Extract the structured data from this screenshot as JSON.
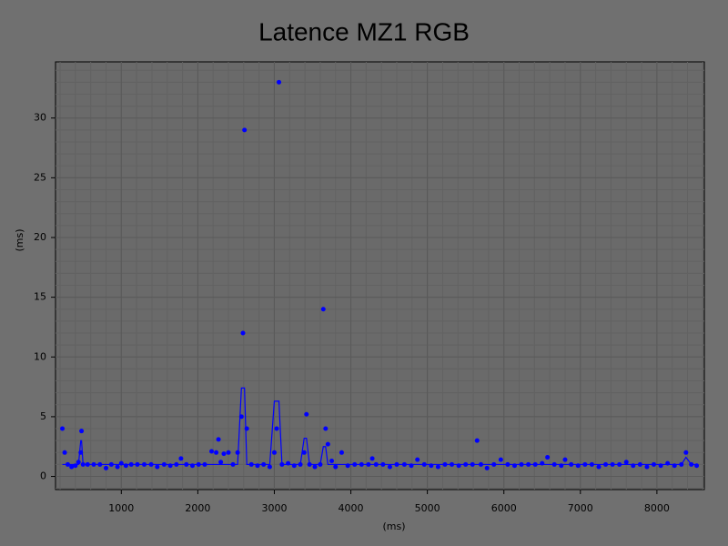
{
  "chart_data": {
    "type": "scatter",
    "title": "Latence MZ1 RGB",
    "x_label": "(ms)",
    "y_label": "(ms)",
    "x": [
      230,
      260,
      300,
      350,
      400,
      440,
      470,
      480,
      500,
      560,
      640,
      720,
      800,
      870,
      950,
      1000,
      1060,
      1130,
      1210,
      1300,
      1390,
      1470,
      1560,
      1640,
      1720,
      1780,
      1850,
      1930,
      2010,
      2090,
      2180,
      2240,
      2270,
      2300,
      2340,
      2400,
      2460,
      2520,
      2570,
      2590,
      2610,
      2640,
      2700,
      2780,
      2860,
      2940,
      3000,
      3030,
      3060,
      3100,
      3180,
      3260,
      3340,
      3390,
      3420,
      3460,
      3530,
      3600,
      3640,
      3670,
      3700,
      3750,
      3800,
      3880,
      3960,
      4050,
      4140,
      4230,
      4280,
      4330,
      4420,
      4510,
      4600,
      4700,
      4790,
      4870,
      4960,
      5050,
      5140,
      5230,
      5320,
      5410,
      5500,
      5590,
      5650,
      5700,
      5780,
      5870,
      5960,
      6050,
      6140,
      6230,
      6320,
      6410,
      6500,
      6570,
      6660,
      6750,
      6800,
      6880,
      6970,
      7060,
      7150,
      7240,
      7330,
      7420,
      7510,
      7600,
      7690,
      7780,
      7870,
      7960,
      8050,
      8140,
      8230,
      8320,
      8380,
      8450,
      8520
    ],
    "series": [
      {
        "color": "#0000ff",
        "marker": true,
        "values": [
          4,
          2,
          1,
          0.8,
          0.9,
          1.2,
          2,
          3.8,
          1,
          1,
          1,
          1,
          0.7,
          1,
          0.8,
          1.1,
          0.9,
          1,
          1,
          1,
          1,
          0.8,
          1,
          0.9,
          1,
          1.5,
          1,
          0.9,
          1,
          1,
          2.1,
          2,
          3.1,
          1.2,
          1.9,
          2,
          1,
          2,
          5,
          12,
          29,
          4,
          1,
          0.9,
          1,
          0.8,
          2,
          4,
          33,
          1,
          1.1,
          0.9,
          1,
          2,
          5.2,
          1,
          0.8,
          1,
          14,
          4,
          2.7,
          1.3,
          0.8,
          2,
          0.9,
          1,
          1,
          1,
          1.5,
          1,
          1,
          0.8,
          1,
          1,
          0.9,
          1.4,
          1,
          0.9,
          0.8,
          1,
          1,
          0.9,
          1,
          1,
          3,
          1,
          0.7,
          1,
          1.4,
          1,
          0.9,
          1,
          1,
          1,
          1.1,
          1.6,
          1,
          0.9,
          1.4,
          1,
          0.9,
          1,
          1,
          0.8,
          1,
          1,
          1,
          1.2,
          0.9,
          1,
          0.8,
          1,
          0.9,
          1.1,
          0.9,
          1,
          2,
          1,
          0.9
        ]
      },
      {
        "color": "#0000ff",
        "marker": false,
        "values": [
          1,
          1,
          1,
          1,
          1,
          1,
          3,
          3,
          1,
          1,
          1,
          1,
          1,
          1,
          1,
          1,
          1,
          1,
          1,
          1,
          1,
          1,
          1,
          1,
          1,
          1,
          1,
          1,
          1,
          1,
          1,
          1,
          1,
          1,
          1,
          1,
          1,
          1,
          7.4,
          7.4,
          7.4,
          1,
          1,
          1,
          1,
          1,
          6.3,
          6.3,
          6.3,
          1,
          1,
          1,
          1,
          3.2,
          3.2,
          1,
          1,
          1,
          2.5,
          2.5,
          1,
          1,
          1,
          1,
          1,
          1,
          1,
          1,
          1,
          1,
          1,
          1,
          1,
          1,
          1,
          1,
          1,
          1,
          1,
          1,
          1,
          1,
          1,
          1,
          1,
          1,
          1,
          1,
          1,
          1,
          1,
          1,
          1,
          1,
          1,
          1,
          1,
          1,
          1,
          1,
          1,
          1,
          1,
          1,
          1,
          1,
          1,
          1,
          1,
          1,
          1,
          1,
          1,
          1,
          1,
          1,
          1.6,
          1,
          1
        ]
      }
    ],
    "xlim": [
      140,
      8620
    ],
    "ylim": [
      -1.1,
      34.7
    ],
    "xticks": [
      1000,
      2000,
      3000,
      4000,
      5000,
      6000,
      7000,
      8000
    ],
    "yticks": [
      0,
      5,
      10,
      15,
      20,
      25,
      30
    ],
    "grid": true
  }
}
